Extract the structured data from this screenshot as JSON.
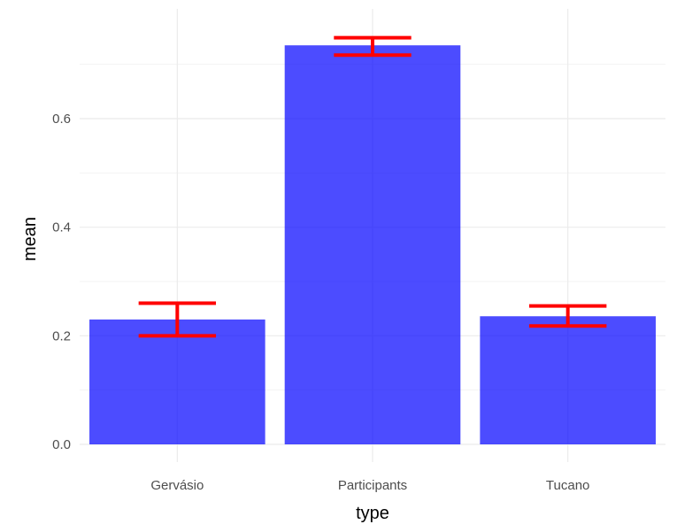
{
  "chart_data": {
    "type": "bar",
    "categories": [
      "Gervásio",
      "Participants",
      "Tucano"
    ],
    "values": [
      0.23,
      0.735,
      0.236
    ],
    "error_bars": {
      "lower": [
        0.2,
        0.717,
        0.218
      ],
      "upper": [
        0.26,
        0.749,
        0.255
      ]
    },
    "xlabel": "type",
    "ylabel": "mean",
    "ylim": [
      0,
      0.77
    ],
    "y_ticks": [
      0.0,
      0.2,
      0.4,
      0.6
    ],
    "y_tick_labels": [
      "0.0",
      "0.2",
      "0.4",
      "0.6"
    ],
    "grid": true,
    "legend": "none",
    "colors": {
      "bar": "#0000FF",
      "bar_opacity": 0.7,
      "error_bar": "#FF0000",
      "grid_major": "#EBEBEB",
      "grid_minor": "#F3F3F3",
      "tick_text": "#4D4D4D"
    }
  }
}
